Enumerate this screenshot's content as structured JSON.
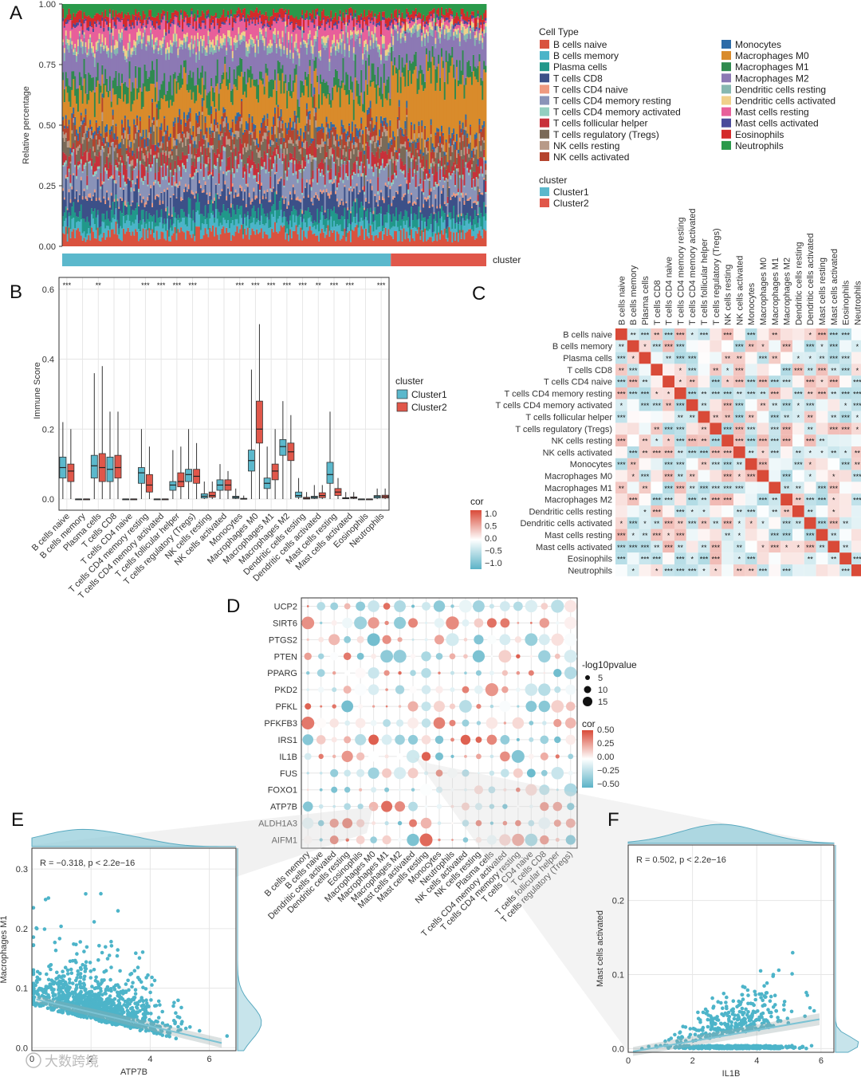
{
  "colors": {
    "cluster1": "#5bb8cc",
    "cluster2": "#e0574a",
    "cor_high": "#d94a38",
    "cor_low": "#5cb3c7",
    "point": "#4db4c9",
    "grid": "#e6e6e6"
  },
  "panels": {
    "A": "A",
    "B": "B",
    "C": "C",
    "D": "D",
    "E": "E",
    "F": "F"
  },
  "cell_types": [
    "B cells naive",
    "B cells memory",
    "Plasma cells",
    "T cells CD8",
    "T cells CD4 naive",
    "T cells CD4 memory resting",
    "T cells CD4 memory activated",
    "T cells follicular helper",
    "T cells regulatory (Tregs)",
    "NK cells resting",
    "NK cells activated",
    "Monocytes",
    "Macrophages M0",
    "Macrophages M1",
    "Macrophages M2",
    "Dendritic cells resting",
    "Dendritic cells activated",
    "Mast cells resting",
    "Mast cells activated",
    "Eosinophils",
    "Neutrophils"
  ],
  "cell_type_colors": [
    "#d9523f",
    "#4bb4c8",
    "#21988a",
    "#3c5088",
    "#ef9a80",
    "#8a93b8",
    "#93cfc0",
    "#c8303a",
    "#7a6a58",
    "#b89a88",
    "#b5442e",
    "#2d6ca8",
    "#d98b2b",
    "#2f8a4e",
    "#8c79b4",
    "#86b8b0",
    "#f0d08a",
    "#e85f9a",
    "#4a4a9a",
    "#d42a2a",
    "#2a9a4a"
  ],
  "chart_data": [
    {
      "id": "A",
      "type": "area",
      "title": "",
      "ylabel": "Relative percentage",
      "ylim": [
        0,
        1
      ],
      "yticks": [
        "0.00",
        "0.25",
        "0.50",
        "0.75",
        "1.00"
      ],
      "legend_title": "Cell Type",
      "cluster_title": "cluster",
      "cluster_bar_label": "cluster",
      "cluster_legend": [
        "Cluster1",
        "Cluster2"
      ],
      "cluster_fraction_cluster1": 0.775
    },
    {
      "id": "B",
      "type": "bar",
      "subtype": "boxplot",
      "ylabel": "Immune Score",
      "ylim": [
        0,
        0.62
      ],
      "yticks": [
        "0.0",
        "0.2",
        "0.4",
        "0.6"
      ],
      "legend_title": "cluster",
      "series_names": [
        "Cluster1",
        "Cluster2"
      ],
      "series": [
        {
          "name": "Cluster1",
          "medians": [
            0.09,
            0.0,
            0.095,
            0.085,
            0.0,
            0.075,
            0.0,
            0.04,
            0.07,
            0.008,
            0.04,
            0.005,
            0.11,
            0.045,
            0.15,
            0.01,
            0.005,
            0.07,
            0.002,
            0.0,
            0.007
          ],
          "q1": [
            0.06,
            0.0,
            0.06,
            0.05,
            0.0,
            0.045,
            0.0,
            0.025,
            0.05,
            0.003,
            0.025,
            0.002,
            0.08,
            0.03,
            0.125,
            0.005,
            0.002,
            0.045,
            0.001,
            0.0,
            0.003
          ],
          "q3": [
            0.12,
            0.0,
            0.125,
            0.12,
            0.0,
            0.09,
            0.0,
            0.05,
            0.085,
            0.015,
            0.055,
            0.008,
            0.14,
            0.06,
            0.17,
            0.02,
            0.008,
            0.105,
            0.004,
            0.0,
            0.01
          ],
          "whisker_hi": [
            0.22,
            0.0,
            0.36,
            0.25,
            0.0,
            0.2,
            0.0,
            0.14,
            0.2,
            0.05,
            0.1,
            0.03,
            0.37,
            0.15,
            0.28,
            0.06,
            0.04,
            0.25,
            0.02,
            0.0,
            0.03
          ]
        },
        {
          "name": "Cluster2",
          "medians": [
            0.08,
            0.0,
            0.09,
            0.09,
            0.0,
            0.04,
            0.0,
            0.05,
            0.065,
            0.01,
            0.04,
            0.0,
            0.2,
            0.08,
            0.135,
            0.002,
            0.01,
            0.02,
            0.004,
            0.0,
            0.007
          ],
          "q1": [
            0.05,
            0.0,
            0.05,
            0.06,
            0.0,
            0.02,
            0.0,
            0.035,
            0.045,
            0.005,
            0.025,
            0.0,
            0.16,
            0.055,
            0.11,
            0.0,
            0.004,
            0.01,
            0.002,
            0.0,
            0.003
          ],
          "q3": [
            0.1,
            0.0,
            0.13,
            0.125,
            0.0,
            0.07,
            0.0,
            0.075,
            0.085,
            0.02,
            0.055,
            0.002,
            0.28,
            0.1,
            0.16,
            0.005,
            0.018,
            0.03,
            0.006,
            0.0,
            0.011
          ],
          "whisker_hi": [
            0.2,
            0.0,
            0.38,
            0.25,
            0.0,
            0.15,
            0.0,
            0.15,
            0.16,
            0.05,
            0.08,
            0.01,
            0.5,
            0.2,
            0.24,
            0.02,
            0.04,
            0.06,
            0.02,
            0.0,
            0.03
          ]
        }
      ],
      "significance": [
        "***",
        "",
        "**",
        "",
        "",
        "***",
        "***",
        "***",
        "***",
        "",
        "",
        "***",
        "***",
        "***",
        "***",
        "***",
        "**",
        "***",
        "***",
        "",
        "***"
      ]
    },
    {
      "id": "C",
      "type": "heatmap",
      "legend_title": "cor",
      "legend_ticks": [
        "1.0",
        "0.5",
        "0.0",
        "−0.5",
        "−1.0"
      ],
      "note": "Correlation matrix among 21 immune cell types; diagonal = 1"
    },
    {
      "id": "D",
      "type": "scatter",
      "subtype": "dotplot",
      "genes": [
        "UCP2",
        "SIRT6",
        "PTGS2",
        "PTEN",
        "PPARG",
        "PKD2",
        "PFKL",
        "PFKFB3",
        "IRS1",
        "IL1B",
        "FUS",
        "FOXO1",
        "ATP7B",
        "ALDH1A3",
        "AIFM1"
      ],
      "cells": [
        "B cells memory",
        "B cells naive",
        "Dendritic cells activated",
        "Dendritic cells resting",
        "Eosinophils",
        "Macrophages M0",
        "Macrophages M1",
        "Macrophages M2",
        "Mast cells activated",
        "Mast cells resting",
        "Monocytes",
        "Neutrophils",
        "NK cells activated",
        "NK cells resting",
        "Plasma cells",
        "T cells CD4 memory activated",
        "T cells CD4 memory resting",
        "T cells CD4 naive",
        "T cells CD8",
        "T cells follicular helper",
        "T cells regulatory (Tregs)"
      ],
      "size_legend_title": "-log10pvalue",
      "size_legend": [
        "5",
        "10",
        "15"
      ],
      "color_legend_title": "cor",
      "color_legend": [
        "0.50",
        "0.25",
        "0.00",
        "−0.25",
        "−0.50"
      ]
    },
    {
      "id": "E",
      "type": "scatter",
      "xlabel": "ATP7B",
      "ylabel": "Macrophages M1",
      "annotation": "R = −0.318, p < 2.2e−16",
      "xlim": [
        0,
        6.9
      ],
      "ylim": [
        -0.005,
        0.335
      ],
      "xticks": [
        "0",
        "2",
        "4",
        "6"
      ],
      "yticks": [
        "0.0",
        "0.1",
        "0.2",
        "0.3"
      ],
      "fit": {
        "slope": -0.0117,
        "intercept": 0.083
      }
    },
    {
      "id": "F",
      "type": "scatter",
      "xlabel": "IL1B",
      "ylabel": "Mast cells activated",
      "annotation": "R = 0.502, p < 2.2e−16",
      "xlim": [
        0,
        6.4
      ],
      "ylim": [
        -0.005,
        0.275
      ],
      "xticks": [
        "0",
        "2",
        "4",
        "6"
      ],
      "yticks": [
        "0.0",
        "0.1",
        "0.2"
      ],
      "fit": {
        "slope": 0.0075,
        "intercept": -0.005
      }
    }
  ],
  "watermark": "大数跨境"
}
